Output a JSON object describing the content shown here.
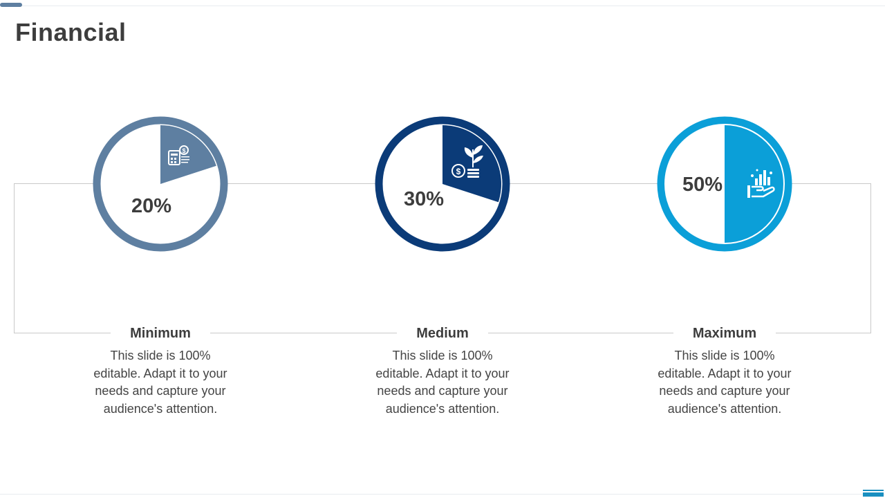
{
  "title": "Financial",
  "colors": {
    "minimum": "#5e7fa1",
    "medium": "#0b3b78",
    "maximum": "#0b9fd8"
  },
  "chart_data": [
    {
      "type": "pie",
      "name": "Minimum",
      "value": 20,
      "label": "20%",
      "color": "#5e7fa1",
      "icon": "calculator-gear-dollar-icon"
    },
    {
      "type": "pie",
      "name": "Medium",
      "value": 30,
      "label": "30%",
      "color": "#0b3b78",
      "icon": "dollar-coin-plant-icon"
    },
    {
      "type": "pie",
      "name": "Maximum",
      "value": 50,
      "label": "50%",
      "color": "#0b9fd8",
      "icon": "hand-money-icon"
    }
  ],
  "tiers": [
    {
      "name": "Minimum",
      "desc": "This slide is 100% editable. Adapt it to your needs and capture your audience's attention."
    },
    {
      "name": "Medium",
      "desc": "This slide is 100% editable. Adapt it to your needs and capture your audience's attention."
    },
    {
      "name": "Maximum",
      "desc": "This slide is 100% editable. Adapt it to your needs and capture your audience's attention."
    }
  ]
}
